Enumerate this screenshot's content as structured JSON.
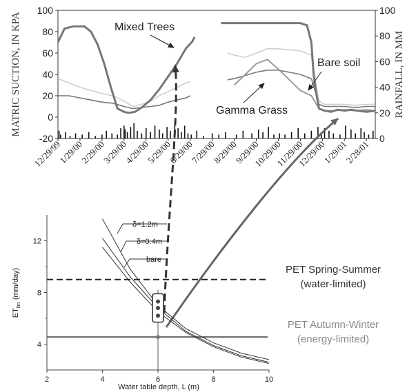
{
  "chart_data": [
    {
      "type": "line",
      "title": "",
      "ylabel": "MATRIC SUCTION, IN KPA",
      "y2label": "RAINFALL, IN MM",
      "ylim": [
        -20,
        100
      ],
      "y2lim": [
        0,
        100
      ],
      "yticks": [
        "100",
        "80",
        "60",
        "40",
        "20",
        "0",
        "-20"
      ],
      "y2ticks": [
        "100",
        "80",
        "60",
        "40",
        "20",
        "0"
      ],
      "xticks": [
        "12/29/99",
        "1/29/00",
        "2/29/00",
        "3/29/00",
        "4/29/00",
        "5/29/00",
        "6/29/00",
        "7/29/00",
        "8/29/00",
        "9/29/00",
        "10/29/00",
        "11/29/00",
        "12/29/00",
        "1/29/01",
        "2/28/01"
      ],
      "annotations": [
        "Mixed Trees",
        "Bare soil",
        "Gamma Grass"
      ],
      "series": [
        {
          "name": "Mixed Trees",
          "x": [
            0,
            0.3,
            0.7,
            1.0,
            1.2,
            1.5,
            1.8,
            2.1,
            2.4,
            2.7,
            3.0,
            3.2,
            3.5,
            3.8,
            4.2,
            4.6,
            5.0,
            5.4,
            5.8,
            6.1,
            6.2,
            7.4,
            8.0,
            8.5,
            9.0,
            9.5,
            10.0,
            10.5,
            11.0,
            11.3,
            11.5,
            11.6,
            11.7,
            11.85,
            12.1,
            12.4,
            12.7,
            13.0,
            13.3,
            13.6,
            14.0,
            14.4
          ],
          "y": [
            70,
            83,
            85,
            85,
            85,
            80,
            68,
            50,
            28,
            8,
            5,
            4,
            5,
            9,
            16,
            26,
            38,
            50,
            64,
            71,
            75,
            88,
            88,
            88,
            88,
            88,
            88,
            88,
            88,
            86,
            70,
            40,
            25,
            8,
            6,
            5,
            7,
            6,
            7,
            6,
            5,
            6
          ]
        },
        {
          "name": "Gamma Grass",
          "x": [
            8.0,
            8.5,
            9.0,
            9.5,
            10.0,
            10.5,
            11.0,
            11.5,
            11.85,
            12.1,
            12.5,
            13.0,
            13.5,
            14.0,
            14.4
          ],
          "y": [
            30,
            40,
            50,
            54,
            45,
            35,
            25,
            20,
            8,
            6,
            6,
            7,
            6,
            7,
            6
          ]
        },
        {
          "name": "Bare soil",
          "x": [
            0,
            0.5,
            1.0,
            1.5,
            2.0,
            2.5,
            3.0,
            3.4,
            3.8,
            4.2,
            4.6,
            5.0,
            5.4,
            5.8,
            6.0,
            7.7,
            8.0,
            8.5,
            9.0,
            9.5,
            10.0,
            10.5,
            11.0,
            11.5,
            11.85,
            12.1,
            12.5,
            13.0,
            13.5,
            14.0,
            14.4
          ],
          "y": [
            20,
            20,
            18,
            16,
            14,
            13,
            10,
            8,
            9,
            10,
            11,
            14,
            16,
            18,
            20,
            35,
            36,
            39,
            42,
            44,
            44,
            42,
            40,
            36,
            12,
            10,
            10,
            10,
            9,
            10,
            10
          ]
        },
        {
          "name": "",
          "x": [
            0,
            0.5,
            1.0,
            1.5,
            2.0,
            2.5,
            3.0,
            3.4,
            3.8,
            4.2,
            4.6,
            5.0,
            5.4,
            5.8,
            6.0,
            7.7,
            8.0,
            8.5,
            9.0,
            9.5,
            10.0,
            10.5,
            11.0,
            11.5,
            11.85,
            12.1,
            12.5,
            13.0,
            13.5,
            14.0,
            14.4
          ],
          "y": [
            36,
            32,
            28,
            25,
            22,
            20,
            15,
            10,
            12,
            15,
            20,
            24,
            28,
            32,
            33,
            60,
            58,
            56,
            60,
            64,
            64,
            63,
            62,
            58,
            15,
            12,
            12,
            12,
            11,
            12,
            12
          ]
        }
      ],
      "rainfall": {
        "x": [
          0.05,
          0.12,
          0.35,
          0.55,
          0.8,
          1.1,
          1.4,
          1.7,
          2.0,
          2.2,
          2.45,
          2.7,
          2.85,
          3.0,
          3.05,
          3.15,
          3.3,
          3.45,
          3.6,
          3.8,
          4.0,
          4.2,
          4.4,
          4.6,
          4.75,
          4.95,
          5.1,
          5.3,
          5.45,
          5.6,
          5.75,
          5.9,
          6.05,
          6.3,
          6.6,
          7.0,
          7.3,
          7.6,
          8.1,
          8.4,
          8.8,
          9.1,
          9.3,
          9.55,
          9.8,
          10.05,
          10.3,
          10.6,
          10.9,
          11.2,
          11.5,
          11.8,
          11.95,
          12.1,
          12.3,
          12.5,
          12.8,
          13.05,
          13.3,
          13.5,
          13.75,
          13.9,
          14.1,
          14.3
        ],
        "values": [
          6,
          3,
          5,
          2,
          4,
          3,
          5,
          2,
          3,
          6,
          4,
          3,
          8,
          10,
          7,
          5,
          9,
          12,
          6,
          4,
          8,
          5,
          10,
          7,
          4,
          9,
          6,
          12,
          8,
          5,
          10,
          4,
          3,
          6,
          2,
          4,
          3,
          5,
          3,
          6,
          4,
          7,
          5,
          9,
          3,
          4,
          3,
          5,
          8,
          4,
          6,
          9,
          3,
          8,
          6,
          4,
          3,
          10,
          7,
          4,
          8,
          5,
          3,
          6
        ]
      }
    },
    {
      "type": "line",
      "title": "",
      "xlabel": "Water table depth, L (m)",
      "ylabel": "ET",
      "ylabel_sub": "lim",
      "ylabel_unit": " (mm/day)",
      "xlim": [
        2,
        10
      ],
      "ylim": [
        2,
        14
      ],
      "xticks": [
        "2",
        "4",
        "6",
        "8",
        "10"
      ],
      "yticks": [
        "4",
        "8",
        "12"
      ],
      "series": [
        {
          "name": "δ=1.2m",
          "x": [
            4,
            5,
            6,
            7,
            8,
            9,
            10
          ],
          "y": [
            13.7,
            9.8,
            7.0,
            5.2,
            4.1,
            3.3,
            2.8
          ]
        },
        {
          "name": "δ=0.4m",
          "x": [
            4,
            5,
            6,
            7,
            8,
            9,
            10
          ],
          "y": [
            12.2,
            9.2,
            6.8,
            5.0,
            3.9,
            3.1,
            2.6
          ]
        },
        {
          "name": "bare",
          "x": [
            4,
            5,
            6,
            7,
            8,
            9,
            10
          ],
          "y": [
            11.5,
            8.8,
            6.5,
            4.9,
            3.8,
            3.0,
            2.5
          ]
        }
      ],
      "reference_lines": [
        {
          "label": "PET Spring-Summer",
          "sublabel": "(water-limited)",
          "y": 9.0,
          "style": "dashed"
        },
        {
          "label": "PET Autumn-Winter",
          "sublabel": "(energy-limited)",
          "y": 4.55,
          "style": "solid"
        }
      ],
      "marked_points": [
        {
          "x": 6,
          "y": 7.3
        },
        {
          "x": 6,
          "y": 6.8
        },
        {
          "x": 6,
          "y": 6.2
        },
        {
          "x": 6,
          "y": 4.55
        }
      ],
      "highlight_box": {
        "x": 6,
        "ylim": [
          5.7,
          7.9
        ]
      }
    }
  ]
}
